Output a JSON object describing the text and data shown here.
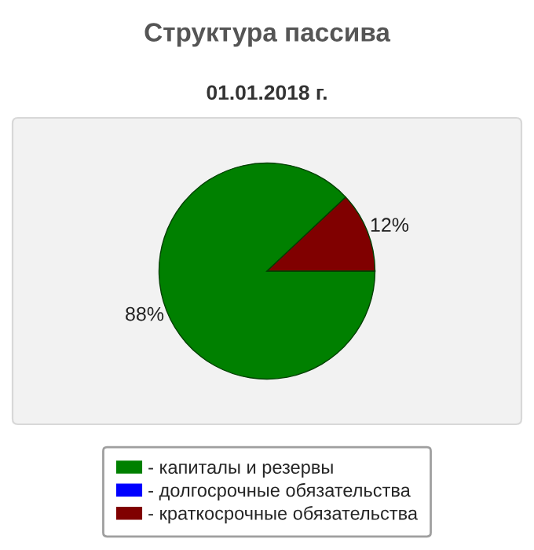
{
  "chart_data": {
    "type": "pie",
    "title": "Структура пассива",
    "subtitle": "01.01.2018 г.",
    "categories": [
      "- капиталы и резервы",
      "- долгосрочные обязательства",
      "- краткосрочные обязательства"
    ],
    "values": [
      88,
      0,
      12
    ],
    "colors": [
      "#008000",
      "#0000ff",
      "#800000"
    ],
    "value_labels": [
      "88%",
      null,
      "12%"
    ],
    "legend": "bottom"
  }
}
